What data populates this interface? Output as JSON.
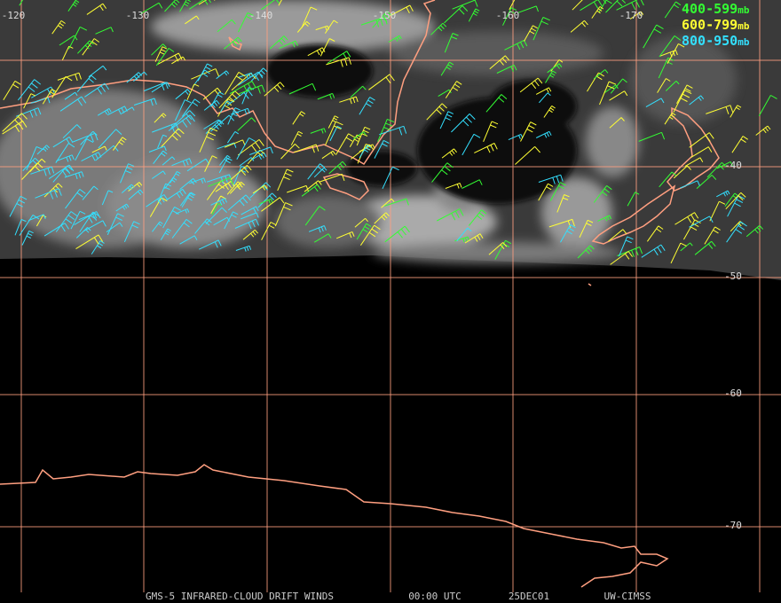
{
  "map": {
    "lon_labels": [
      "-120",
      "-130",
      "-140",
      "-150",
      "-160",
      "-170"
    ],
    "lat_labels": [
      "-40",
      "-50",
      "-60",
      "-70"
    ],
    "legend": [
      {
        "range": "400-599",
        "unit": "mb",
        "color": "#33ff33"
      },
      {
        "range": "600-799",
        "unit": "mb",
        "color": "#ffff33"
      },
      {
        "range": "800-950",
        "unit": "mb",
        "color": "#33e0ff"
      }
    ],
    "footer": [
      "GMS-5 INFRARED-CLOUD DRIFT WINDS",
      "00:00 UTC",
      "25DEC01",
      "UW-CIMSS"
    ]
  }
}
